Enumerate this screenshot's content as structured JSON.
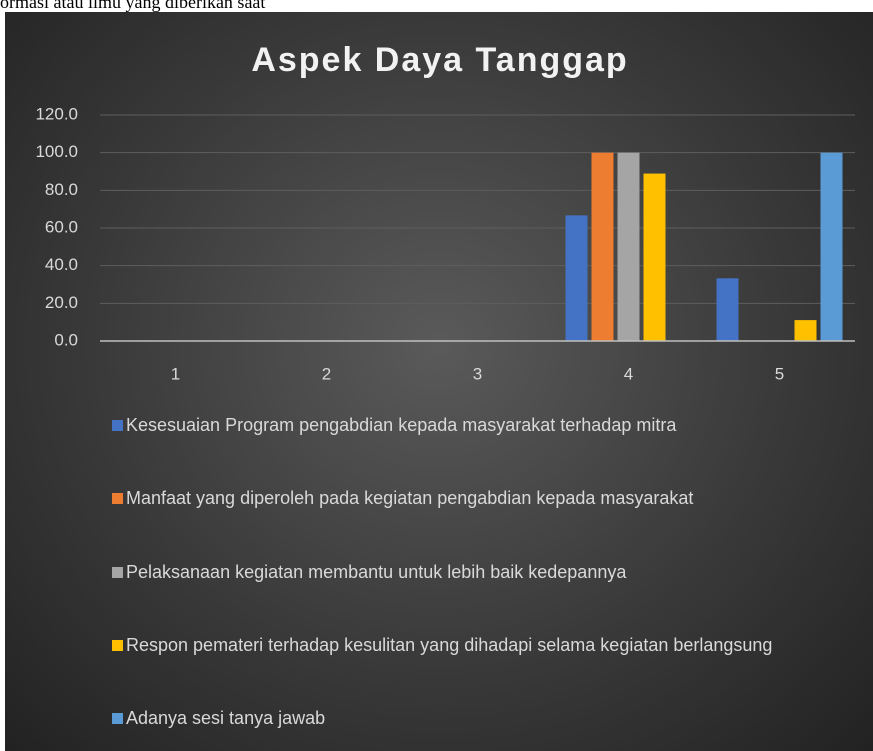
{
  "top_text": "ormasi atau ilmu yang diberikan saat",
  "chart_data": {
    "type": "bar",
    "title": "Aspek Daya Tanggap",
    "categories": [
      "1",
      "2",
      "3",
      "4",
      "5"
    ],
    "series": [
      {
        "name": "Kesesuaian Program pengabdian kepada masyarakat terhadap mitra",
        "color": "#4472c4",
        "values": [
          0,
          0,
          0,
          66.7,
          33.3
        ]
      },
      {
        "name": "Manfaat yang diperoleh pada kegiatan pengabdian kepada masyarakat",
        "color": "#ed7d31",
        "values": [
          0,
          0,
          0,
          100,
          0
        ]
      },
      {
        "name": "Pelaksanaan kegiatan membantu untuk lebih baik kedepannya",
        "color": "#a5a5a5",
        "values": [
          0,
          0,
          0,
          100,
          0
        ]
      },
      {
        "name": "Respon pemateri terhadap kesulitan yang dihadapi selama kegiatan berlangsung",
        "color": "#ffc000",
        "values": [
          0,
          0,
          0,
          88.9,
          11.1
        ]
      },
      {
        "name": "Adanya sesi tanya jawab",
        "color": "#5b9bd5",
        "values": [
          0,
          0,
          0,
          0,
          100
        ]
      }
    ],
    "ylim": [
      0,
      120
    ],
    "yticks": [
      {
        "value": 0,
        "label": "0.0"
      },
      {
        "value": 20,
        "label": "20.0"
      },
      {
        "value": 40,
        "label": "40.0"
      },
      {
        "value": 60,
        "label": "60.0"
      },
      {
        "value": 80,
        "label": "80.0"
      },
      {
        "value": 100,
        "label": "100.0"
      },
      {
        "value": 120,
        "label": "120.0"
      }
    ],
    "grid": true,
    "legend": "bottom"
  }
}
